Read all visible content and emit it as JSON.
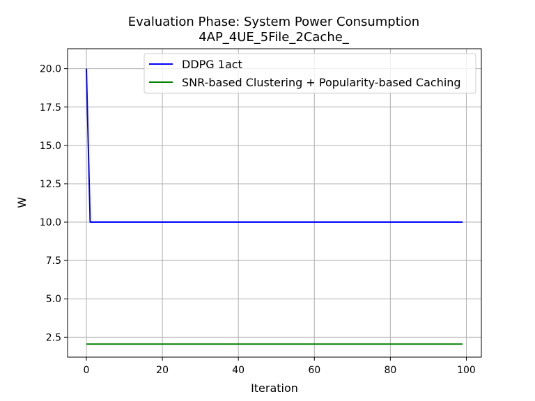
{
  "chart_data": {
    "type": "line",
    "title": "Evaluation Phase: System Power Consumption",
    "subtitle": "4AP_4UE_5File_2Cache_",
    "xlabel": "Iteration",
    "ylabel": "W",
    "xlim": [
      -4.95,
      103.95
    ],
    "ylim": [
      1.2,
      21.3
    ],
    "xticks": [
      0,
      20,
      40,
      60,
      80,
      100
    ],
    "yticks": [
      2.5,
      5.0,
      7.5,
      10.0,
      12.5,
      15.0,
      17.5,
      20.0
    ],
    "xtick_labels": [
      "0",
      "20",
      "40",
      "60",
      "80",
      "100"
    ],
    "ytick_labels": [
      "2.5",
      "5.0",
      "7.5",
      "10.0",
      "12.5",
      "15.0",
      "17.5",
      "20.0"
    ],
    "grid": true,
    "legend_position": "top-right",
    "series": [
      {
        "name": "DDPG 1act",
        "color": "#0000ff",
        "x": [
          0,
          1,
          99
        ],
        "y": [
          20.0,
          10.0,
          10.0
        ]
      },
      {
        "name": "SNR-based Clustering + Popularity-based Caching",
        "color": "#008000",
        "x": [
          0,
          99
        ],
        "y": [
          2.05,
          2.05
        ]
      }
    ]
  }
}
